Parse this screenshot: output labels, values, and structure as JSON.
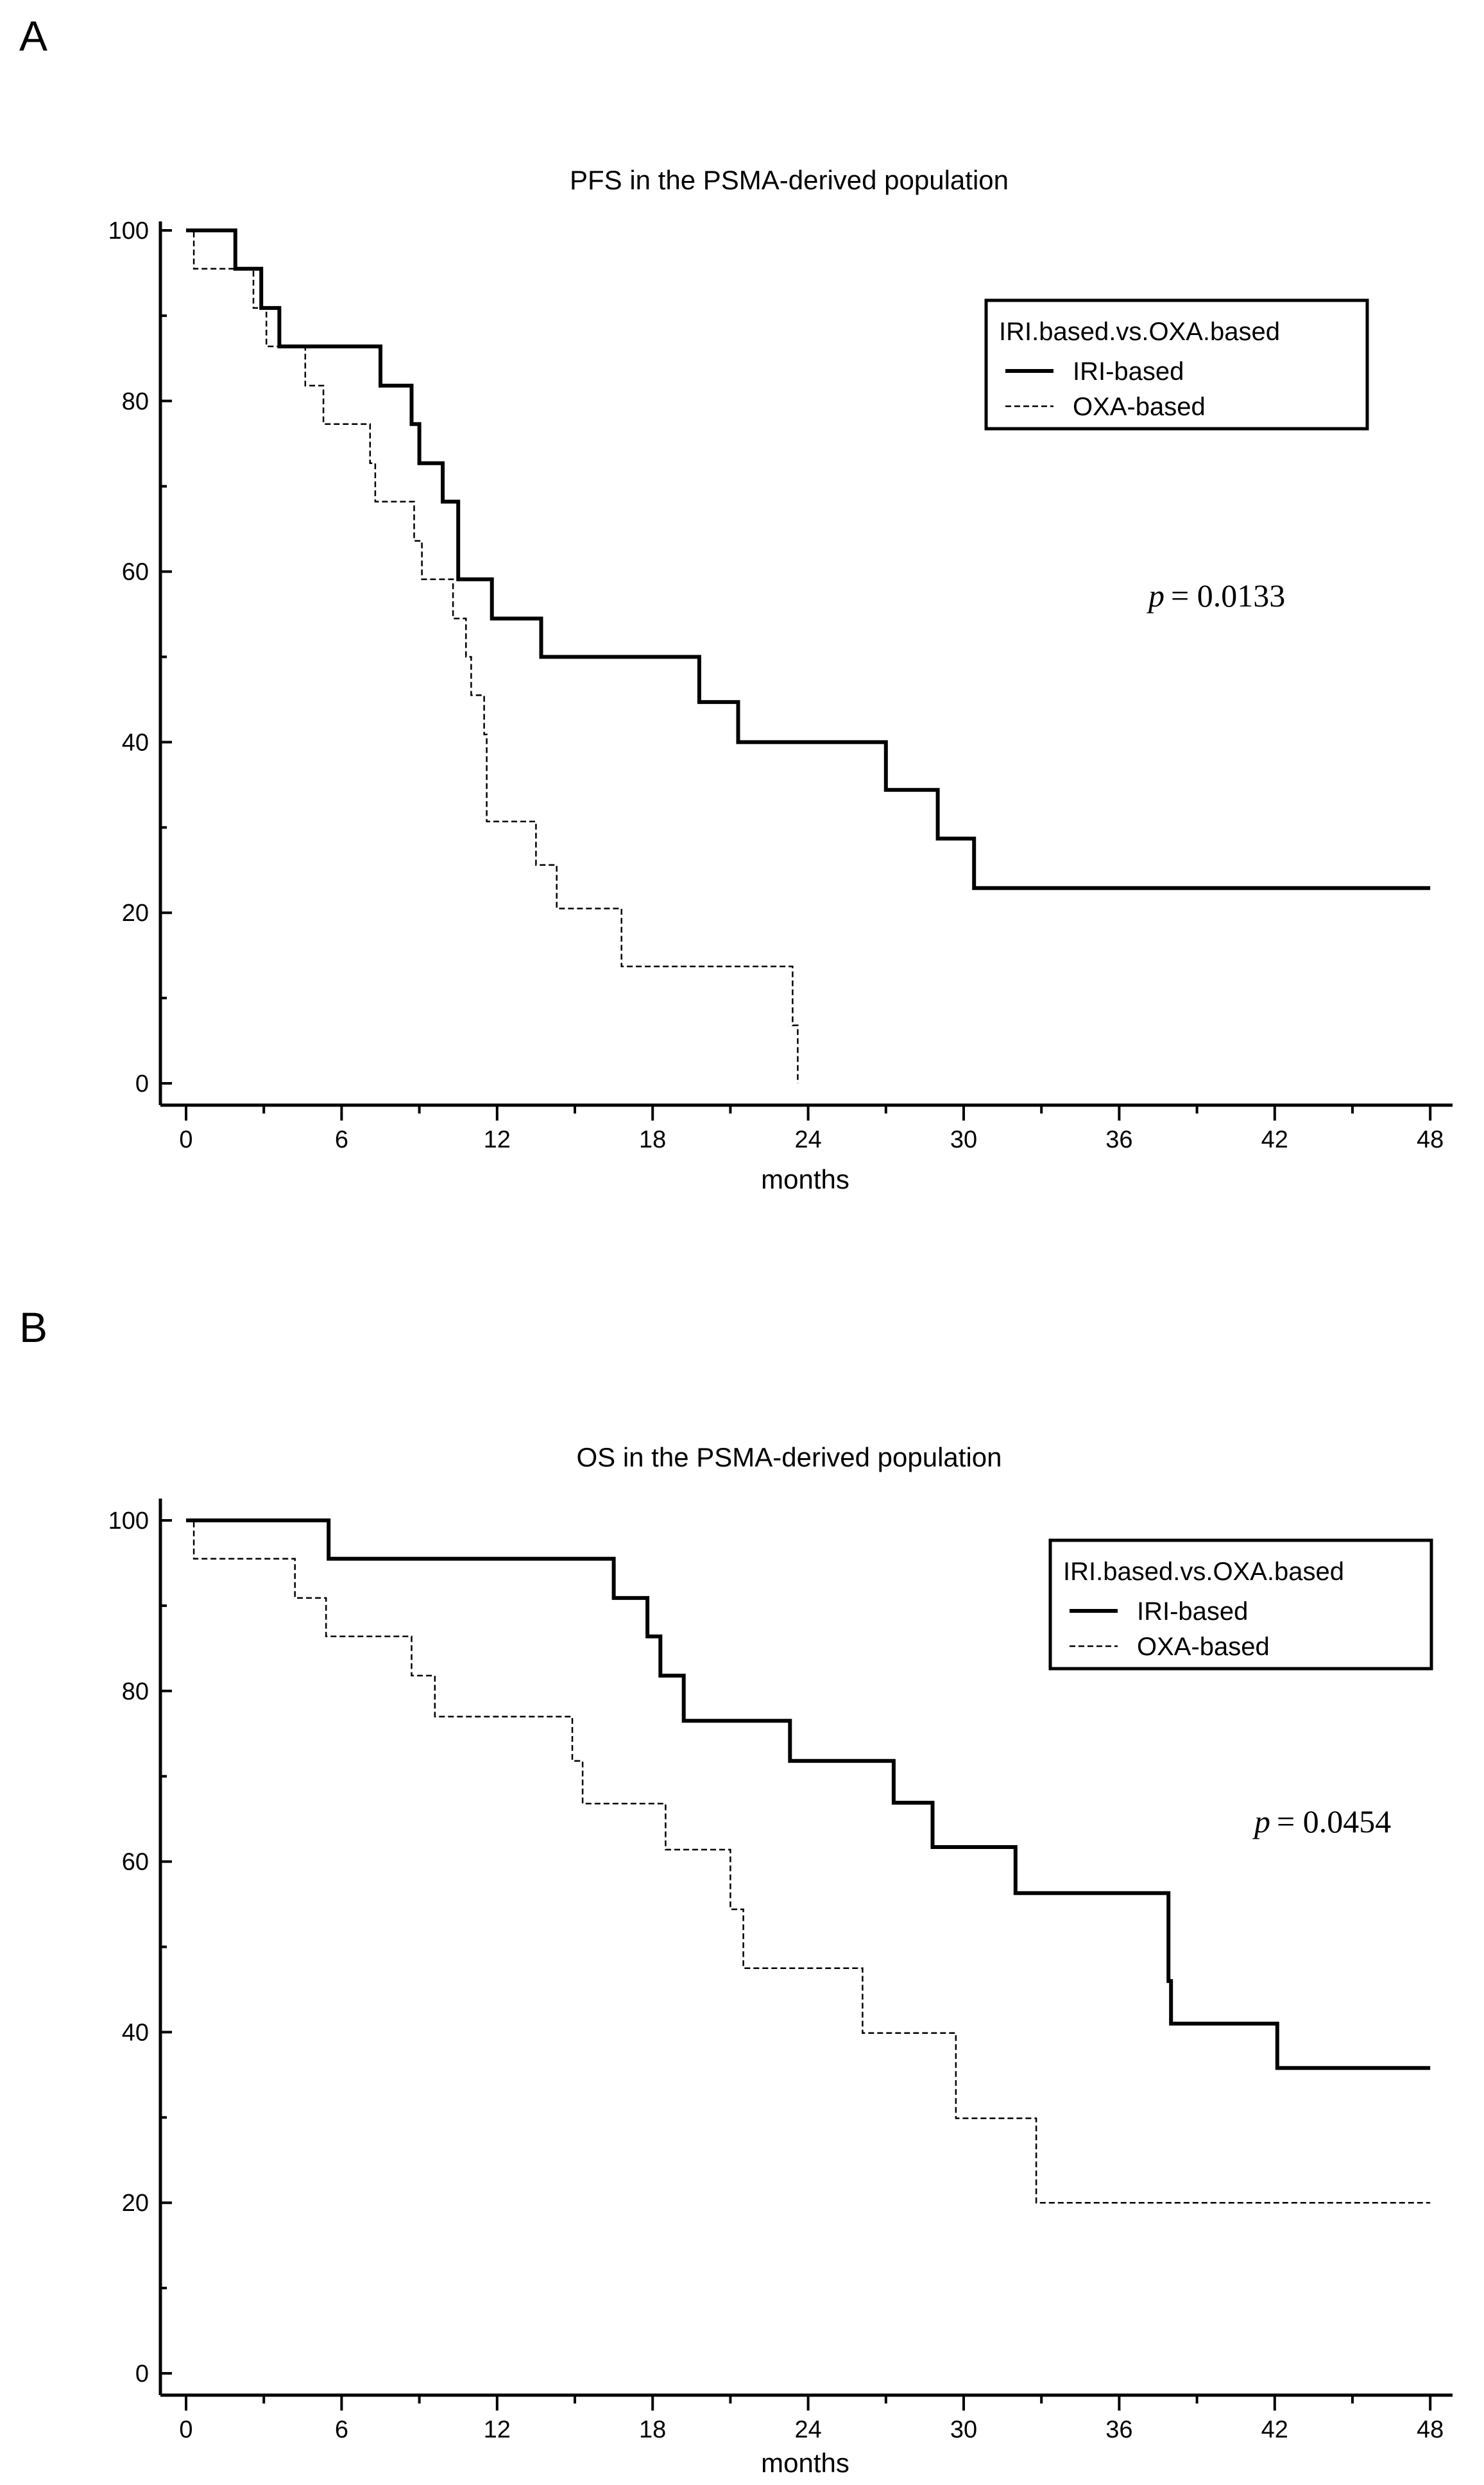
{
  "chart_data": [
    {
      "panel": "A",
      "type": "line",
      "title": "PFS in the PSMA-derived population",
      "xlabel": "months",
      "ylabel": "",
      "xlim": [
        -1,
        48
      ],
      "ylim": [
        0,
        100
      ],
      "xticks": [
        0,
        6,
        12,
        18,
        24,
        30,
        36,
        42,
        48
      ],
      "yticks": [
        0,
        20,
        40,
        60,
        80,
        100
      ],
      "legend_title": "IRI.based.vs.OXA.based",
      "p_label": "p",
      "p_value": "= 0.0133",
      "series": [
        {
          "name": "IRI-based",
          "style": "solid",
          "points": [
            [
              0,
              100
            ],
            [
              1.9,
              100
            ],
            [
              1.9,
              95.5
            ],
            [
              2.9,
              95.5
            ],
            [
              2.9,
              90.9
            ],
            [
              3.6,
              90.9
            ],
            [
              3.6,
              86.4
            ],
            [
              7.5,
              86.4
            ],
            [
              7.5,
              81.8
            ],
            [
              8.7,
              81.8
            ],
            [
              8.7,
              77.3
            ],
            [
              9.0,
              77.3
            ],
            [
              9.0,
              72.7
            ],
            [
              9.9,
              72.7
            ],
            [
              9.9,
              68.2
            ],
            [
              10.5,
              68.2
            ],
            [
              10.5,
              59.1
            ],
            [
              11.8,
              59.1
            ],
            [
              11.8,
              54.5
            ],
            [
              13.7,
              54.5
            ],
            [
              13.7,
              50.0
            ],
            [
              19.8,
              50.0
            ],
            [
              19.8,
              44.7
            ],
            [
              21.3,
              44.7
            ],
            [
              21.3,
              40.0
            ],
            [
              27.0,
              40.0
            ],
            [
              27.0,
              34.4
            ],
            [
              29.0,
              34.4
            ],
            [
              29.0,
              28.7
            ],
            [
              30.4,
              28.7
            ],
            [
              30.4,
              22.9
            ],
            [
              48,
              22.9
            ]
          ]
        },
        {
          "name": "OXA-based",
          "style": "dashed",
          "points": [
            [
              0,
              100
            ],
            [
              0.3,
              100
            ],
            [
              0.3,
              95.5
            ],
            [
              2.6,
              95.5
            ],
            [
              2.6,
              90.9
            ],
            [
              3.1,
              90.9
            ],
            [
              3.1,
              86.4
            ],
            [
              4.6,
              86.4
            ],
            [
              4.6,
              81.8
            ],
            [
              5.3,
              81.8
            ],
            [
              5.3,
              77.3
            ],
            [
              7.1,
              77.3
            ],
            [
              7.1,
              72.7
            ],
            [
              7.3,
              72.7
            ],
            [
              7.3,
              68.2
            ],
            [
              8.8,
              68.2
            ],
            [
              8.8,
              63.6
            ],
            [
              9.1,
              63.6
            ],
            [
              9.1,
              59.1
            ],
            [
              10.3,
              59.1
            ],
            [
              10.3,
              54.5
            ],
            [
              10.8,
              54.5
            ],
            [
              10.8,
              50.0
            ],
            [
              11.0,
              50.0
            ],
            [
              11.0,
              45.5
            ],
            [
              11.5,
              45.5
            ],
            [
              11.5,
              40.9
            ],
            [
              11.6,
              40.9
            ],
            [
              11.6,
              30.7
            ],
            [
              13.5,
              30.7
            ],
            [
              13.5,
              25.6
            ],
            [
              14.3,
              25.6
            ],
            [
              14.3,
              20.5
            ],
            [
              16.8,
              20.5
            ],
            [
              16.8,
              13.7
            ],
            [
              23.4,
              13.7
            ],
            [
              23.4,
              6.8
            ],
            [
              23.6,
              6.8
            ],
            [
              23.6,
              0
            ]
          ]
        }
      ]
    },
    {
      "panel": "B",
      "type": "line",
      "title": "OS in the PSMA-derived population",
      "xlabel": "months",
      "ylabel": "",
      "xlim": [
        -1,
        48
      ],
      "ylim": [
        0,
        100
      ],
      "xticks": [
        0,
        6,
        12,
        18,
        24,
        30,
        36,
        42,
        48
      ],
      "yticks": [
        0,
        20,
        40,
        60,
        80,
        100
      ],
      "legend_title": "IRI.based.vs.OXA.based",
      "p_label": "p",
      "p_value": "= 0.0454",
      "series": [
        {
          "name": "IRI-based",
          "style": "solid",
          "points": [
            [
              0,
              100
            ],
            [
              5.5,
              100
            ],
            [
              5.5,
              95.5
            ],
            [
              16.5,
              95.5
            ],
            [
              16.5,
              90.9
            ],
            [
              17.8,
              90.9
            ],
            [
              17.8,
              86.4
            ],
            [
              18.3,
              86.4
            ],
            [
              18.3,
              81.8
            ],
            [
              19.2,
              81.8
            ],
            [
              19.2,
              76.5
            ],
            [
              23.3,
              76.5
            ],
            [
              23.3,
              71.8
            ],
            [
              27.3,
              71.8
            ],
            [
              27.3,
              66.9
            ],
            [
              28.8,
              66.9
            ],
            [
              28.8,
              61.7
            ],
            [
              32.0,
              61.7
            ],
            [
              32.0,
              56.3
            ],
            [
              37.9,
              56.3
            ],
            [
              37.9,
              46.0
            ],
            [
              38.0,
              46.0
            ],
            [
              38.0,
              41.0
            ],
            [
              42.1,
              41.0
            ],
            [
              42.1,
              35.8
            ],
            [
              48,
              35.8
            ]
          ]
        },
        {
          "name": "OXA-based",
          "style": "dashed",
          "points": [
            [
              0,
              100
            ],
            [
              0.3,
              100
            ],
            [
              0.3,
              95.5
            ],
            [
              4.2,
              95.5
            ],
            [
              4.2,
              90.9
            ],
            [
              5.4,
              90.9
            ],
            [
              5.4,
              86.4
            ],
            [
              8.7,
              86.4
            ],
            [
              8.7,
              81.8
            ],
            [
              9.6,
              81.8
            ],
            [
              9.6,
              77.0
            ],
            [
              14.9,
              77.0
            ],
            [
              14.9,
              71.8
            ],
            [
              15.3,
              71.8
            ],
            [
              15.3,
              66.8
            ],
            [
              18.5,
              66.8
            ],
            [
              18.5,
              61.4
            ],
            [
              21.0,
              61.4
            ],
            [
              21.0,
              54.4
            ],
            [
              21.5,
              54.4
            ],
            [
              21.5,
              47.5
            ],
            [
              26.1,
              47.5
            ],
            [
              26.1,
              39.9
            ],
            [
              29.7,
              39.9
            ],
            [
              29.7,
              29.9
            ],
            [
              32.8,
              29.9
            ],
            [
              32.8,
              20.0
            ],
            [
              48,
              20.0
            ]
          ]
        }
      ]
    }
  ],
  "panels": {
    "a_letter": "A",
    "b_letter": "B"
  }
}
